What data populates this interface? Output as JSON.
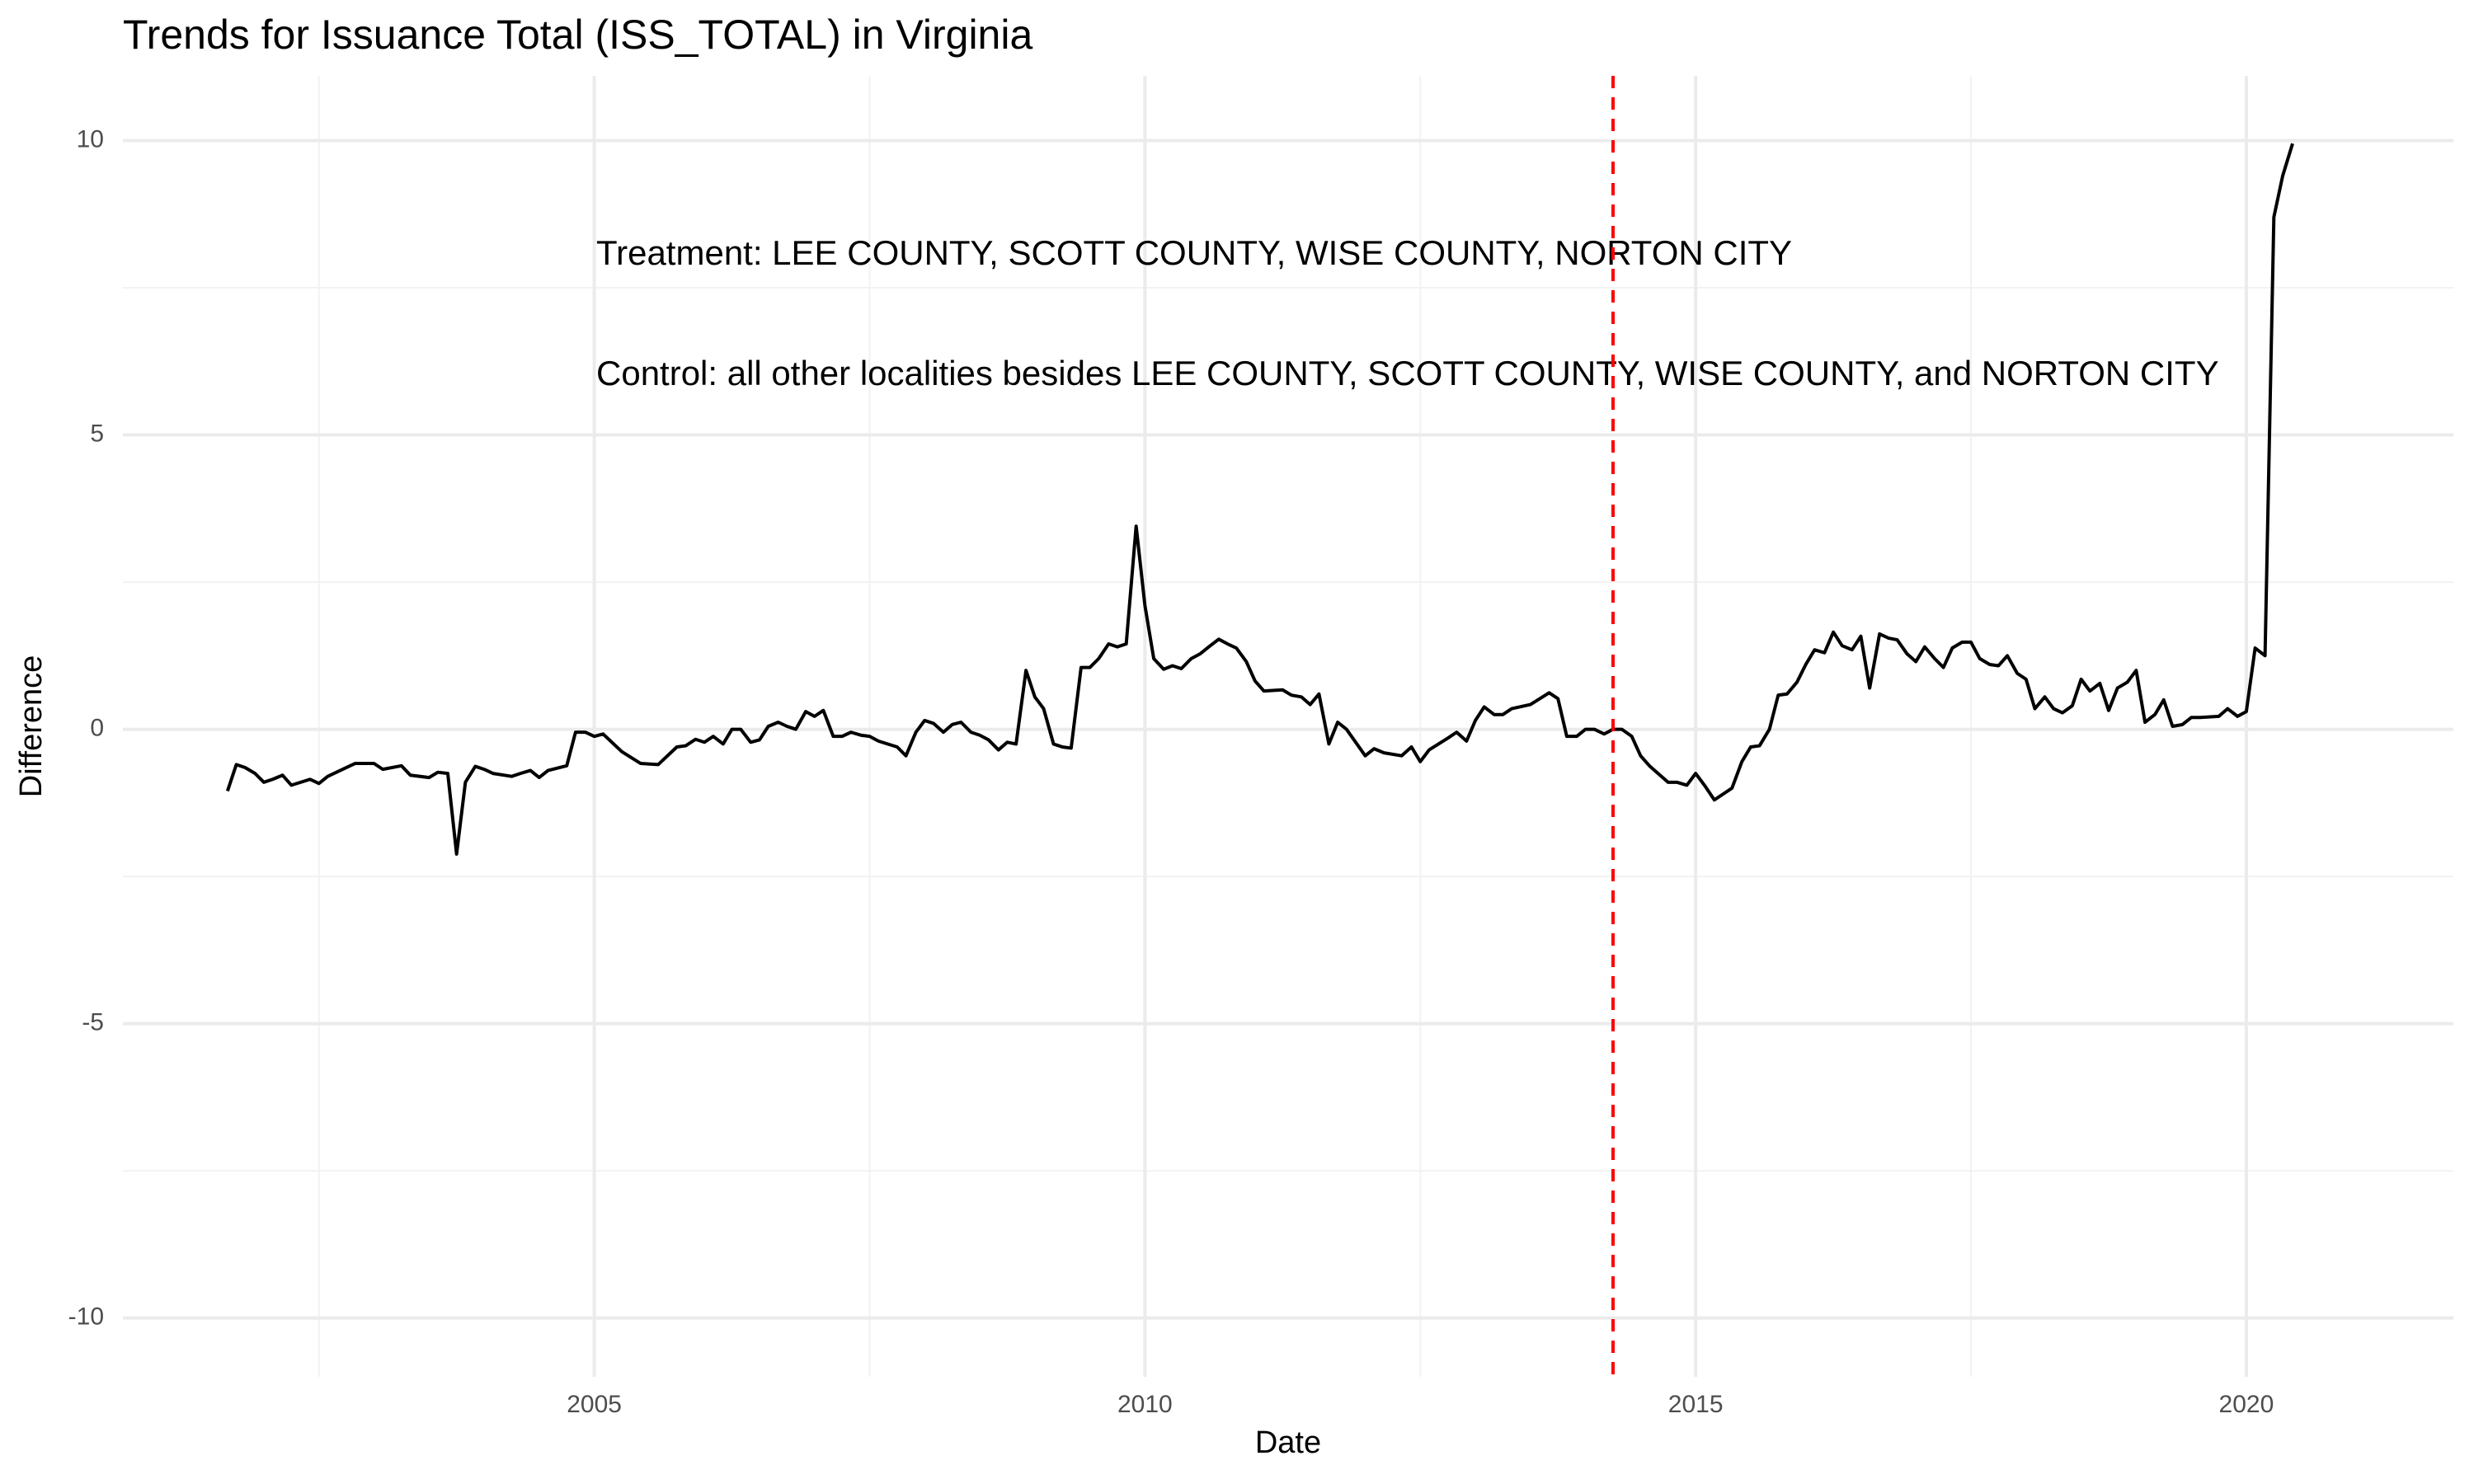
{
  "chart_data": {
    "type": "line",
    "title": "Trends for Issuance Total (ISS_TOTAL) in Virginia",
    "x_label": "Date",
    "y_label": "Difference",
    "annotations": [
      "Treatment: LEE COUNTY, SCOTT COUNTY, WISE COUNTY, NORTON CITY",
      "Control: all other localities besides LEE COUNTY, SCOTT COUNTY, WISE COUNTY, and NORTON CITY"
    ],
    "xlim": [
      2000.72,
      2021.88
    ],
    "ylim": [
      -11.0,
      11.1
    ],
    "xticks": [
      2005,
      2010,
      2015,
      2020
    ],
    "yticks": [
      -10,
      -5,
      0,
      5,
      10
    ],
    "minor_xticks": [
      2002.5,
      2007.5,
      2012.5,
      2017.5
    ],
    "minor_yticks": [
      -7.5,
      -2.5,
      2.5,
      7.5
    ],
    "grid": true,
    "vline": {
      "x": 2014.25,
      "color": "#ff0000",
      "dashed": true
    },
    "series": [
      {
        "color": "#000000",
        "x": [
          2001.67,
          2001.75,
          2001.83,
          2001.92,
          2002.0,
          2002.08,
          2002.17,
          2002.25,
          2002.42,
          2002.5,
          2002.58,
          2002.75,
          2002.83,
          2003.0,
          2003.08,
          2003.25,
          2003.33,
          2003.5,
          2003.58,
          2003.67,
          2003.75,
          2003.83,
          2003.92,
          2004.0,
          2004.08,
          2004.25,
          2004.33,
          2004.42,
          2004.5,
          2004.58,
          2004.75,
          2004.83,
          2004.92,
          2005.0,
          2005.08,
          2005.25,
          2005.42,
          2005.58,
          2005.75,
          2005.83,
          2005.92,
          2006.0,
          2006.08,
          2006.17,
          2006.25,
          2006.33,
          2006.42,
          2006.5,
          2006.58,
          2006.67,
          2006.75,
          2006.83,
          2006.92,
          2007.0,
          2007.08,
          2007.17,
          2007.25,
          2007.33,
          2007.42,
          2007.5,
          2007.58,
          2007.75,
          2007.83,
          2007.92,
          2008.0,
          2008.08,
          2008.17,
          2008.25,
          2008.33,
          2008.42,
          2008.5,
          2008.58,
          2008.67,
          2008.75,
          2008.83,
          2008.92,
          2009.0,
          2009.08,
          2009.17,
          2009.25,
          2009.33,
          2009.42,
          2009.5,
          2009.58,
          2009.67,
          2009.75,
          2009.83,
          2009.92,
          2010.0,
          2010.08,
          2010.17,
          2010.25,
          2010.33,
          2010.42,
          2010.5,
          2010.58,
          2010.67,
          2010.75,
          2010.83,
          2010.92,
          2011.0,
          2011.08,
          2011.25,
          2011.33,
          2011.42,
          2011.5,
          2011.58,
          2011.67,
          2011.75,
          2011.83,
          2012.0,
          2012.08,
          2012.17,
          2012.33,
          2012.42,
          2012.5,
          2012.58,
          2012.75,
          2012.83,
          2012.92,
          2013.0,
          2013.08,
          2013.17,
          2013.25,
          2013.33,
          2013.5,
          2013.67,
          2013.75,
          2013.83,
          2013.92,
          2014.0,
          2014.08,
          2014.17,
          2014.25,
          2014.33,
          2014.42,
          2014.5,
          2014.58,
          2014.75,
          2014.83,
          2014.92,
          2015.0,
          2015.08,
          2015.17,
          2015.33,
          2015.42,
          2015.5,
          2015.58,
          2015.67,
          2015.75,
          2015.83,
          2015.92,
          2016.0,
          2016.08,
          2016.17,
          2016.25,
          2016.33,
          2016.42,
          2016.5,
          2016.58,
          2016.67,
          2016.75,
          2016.83,
          2016.92,
          2017.0,
          2017.08,
          2017.17,
          2017.25,
          2017.33,
          2017.42,
          2017.5,
          2017.58,
          2017.67,
          2017.75,
          2017.83,
          2017.92,
          2018.0,
          2018.08,
          2018.17,
          2018.25,
          2018.33,
          2018.42,
          2018.5,
          2018.58,
          2018.67,
          2018.75,
          2018.83,
          2018.92,
          2019.0,
          2019.08,
          2019.17,
          2019.25,
          2019.33,
          2019.42,
          2019.5,
          2019.58,
          2019.75,
          2019.83,
          2019.92,
          2020.0,
          2020.08,
          2020.17,
          2020.25,
          2020.33,
          2020.42
        ],
        "values": [
          -1.05,
          -0.6,
          -0.65,
          -0.75,
          -0.9,
          -0.85,
          -0.78,
          -0.95,
          -0.85,
          -0.92,
          -0.8,
          -0.65,
          -0.58,
          -0.58,
          -0.68,
          -0.62,
          -0.78,
          -0.82,
          -0.73,
          -0.75,
          -2.12,
          -0.9,
          -0.63,
          -0.68,
          -0.75,
          -0.8,
          -0.75,
          -0.7,
          -0.82,
          -0.7,
          -0.62,
          -0.05,
          -0.05,
          -0.12,
          -0.08,
          -0.38,
          -0.58,
          -0.6,
          -0.3,
          -0.28,
          -0.17,
          -0.22,
          -0.12,
          -0.25,
          0.0,
          0.0,
          -0.22,
          -0.18,
          0.05,
          0.12,
          0.05,
          0.0,
          0.3,
          0.22,
          0.32,
          -0.12,
          -0.12,
          -0.05,
          -0.1,
          -0.12,
          -0.2,
          -0.3,
          -0.45,
          -0.05,
          0.15,
          0.1,
          -0.05,
          0.08,
          0.12,
          -0.05,
          -0.1,
          -0.18,
          -0.35,
          -0.22,
          -0.25,
          1.0,
          0.55,
          0.35,
          -0.25,
          -0.3,
          -0.32,
          1.05,
          1.05,
          1.2,
          1.45,
          1.4,
          1.45,
          3.45,
          2.1,
          1.2,
          1.02,
          1.08,
          1.03,
          1.2,
          1.28,
          1.4,
          1.53,
          1.45,
          1.38,
          1.15,
          0.82,
          0.65,
          0.67,
          0.58,
          0.55,
          0.42,
          0.6,
          -0.25,
          0.12,
          0.0,
          -0.45,
          -0.33,
          -0.4,
          -0.45,
          -0.3,
          -0.55,
          -0.35,
          -0.15,
          -0.05,
          -0.2,
          0.15,
          0.38,
          0.25,
          0.25,
          0.35,
          0.42,
          0.62,
          0.52,
          -0.12,
          -0.12,
          0.0,
          0.0,
          -0.08,
          0.0,
          0.0,
          -0.12,
          -0.45,
          -0.62,
          -0.9,
          -0.9,
          -0.95,
          -0.75,
          -0.95,
          -1.2,
          -1.0,
          -0.55,
          -0.3,
          -0.28,
          0.0,
          0.58,
          0.6,
          0.8,
          1.1,
          1.35,
          1.3,
          1.65,
          1.42,
          1.35,
          1.58,
          0.7,
          1.62,
          1.55,
          1.52,
          1.28,
          1.15,
          1.4,
          1.2,
          1.05,
          1.38,
          1.48,
          1.48,
          1.2,
          1.1,
          1.08,
          1.25,
          0.95,
          0.85,
          0.35,
          0.55,
          0.35,
          0.28,
          0.4,
          0.85,
          0.65,
          0.78,
          0.32,
          0.7,
          0.8,
          1.0,
          0.12,
          0.25,
          0.5,
          0.05,
          0.08,
          0.2,
          0.2,
          0.22,
          0.35,
          0.22,
          0.3,
          1.38,
          1.25,
          8.7,
          9.4,
          9.95
        ]
      }
    ]
  }
}
